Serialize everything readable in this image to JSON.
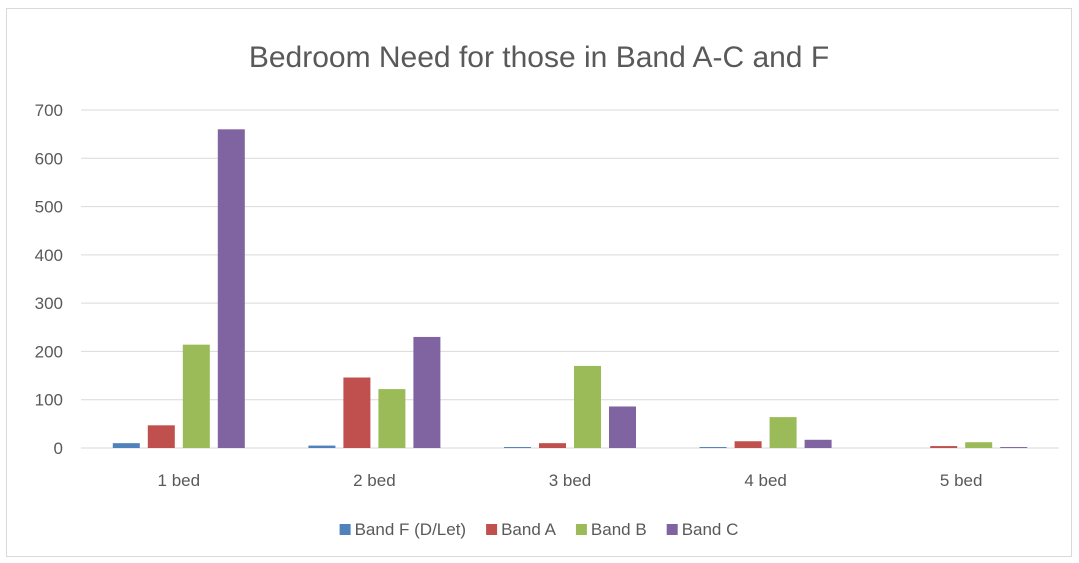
{
  "chart_data": {
    "type": "bar",
    "title": "Bedroom Need for those in Band A-C and F",
    "xlabel": "",
    "ylabel": "",
    "categories": [
      "1 bed",
      "2 bed",
      "3 bed",
      "4 bed",
      "5 bed"
    ],
    "series": [
      {
        "name": "Band F (D/Let)",
        "color": "#4f81bd",
        "values": [
          10,
          5,
          2,
          2,
          0
        ]
      },
      {
        "name": "Band A",
        "color": "#c0504d",
        "values": [
          47,
          146,
          10,
          14,
          4
        ]
      },
      {
        "name": "Band B",
        "color": "#9bbb59",
        "values": [
          214,
          122,
          170,
          64,
          12
        ]
      },
      {
        "name": "Band C",
        "color": "#8064a2",
        "values": [
          660,
          230,
          86,
          17,
          2
        ]
      }
    ],
    "ylim": [
      0,
      700
    ],
    "yticks": [
      "0",
      "100",
      "200",
      "300",
      "400",
      "500",
      "600",
      "700"
    ],
    "grid": true,
    "legend_position": "bottom"
  }
}
